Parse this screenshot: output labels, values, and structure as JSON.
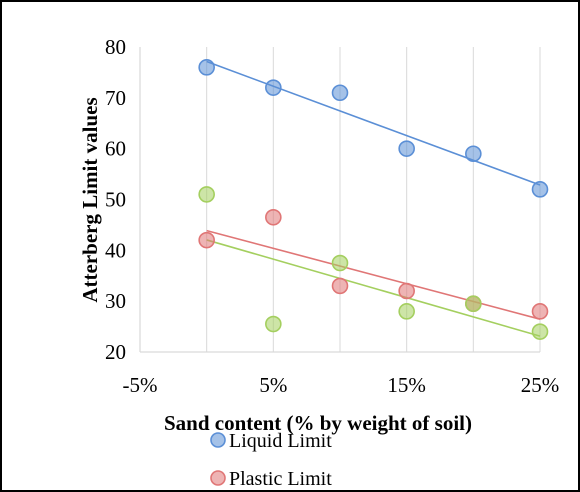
{
  "chart_data": {
    "type": "scatter",
    "xlabel": "Sand content (% by weight of soil)",
    "ylabel": "Atterberg Limit values",
    "xlim": [
      -0.05,
      0.25
    ],
    "ylim": [
      20,
      80
    ],
    "x_ticks": [
      "-5%",
      "5%",
      "15%",
      "25%"
    ],
    "x_tick_values": [
      -0.05,
      0.05,
      0.15,
      0.25
    ],
    "y_ticks": [
      "20",
      "30",
      "40",
      "50",
      "60",
      "70",
      "80"
    ],
    "y_tick_values": [
      20,
      30,
      40,
      50,
      60,
      70,
      80
    ],
    "grid": "vertical",
    "legend": "bottom",
    "series": [
      {
        "name": "Liquid Limit",
        "color": "#5b8fd6",
        "x": [
          0,
          0.05,
          0.1,
          0.15,
          0.2,
          0.25
        ],
        "y": [
          76,
          72,
          71,
          60,
          59,
          52
        ],
        "trendline": true,
        "in_legend": true
      },
      {
        "name": "Plastic Limit",
        "color": "#e07676",
        "x": [
          0,
          0.05,
          0.1,
          0.15,
          0.2,
          0.25
        ],
        "y": [
          42,
          46.5,
          33,
          32,
          29.5,
          28
        ],
        "trendline": true,
        "in_legend": true
      },
      {
        "name": "",
        "color": "#a4cf5f",
        "x": [
          0,
          0.05,
          0.1,
          0.15,
          0.2,
          0.25
        ],
        "y": [
          51,
          25.5,
          37.5,
          28,
          29.5,
          24
        ],
        "trendline": true,
        "in_legend": false
      }
    ]
  }
}
